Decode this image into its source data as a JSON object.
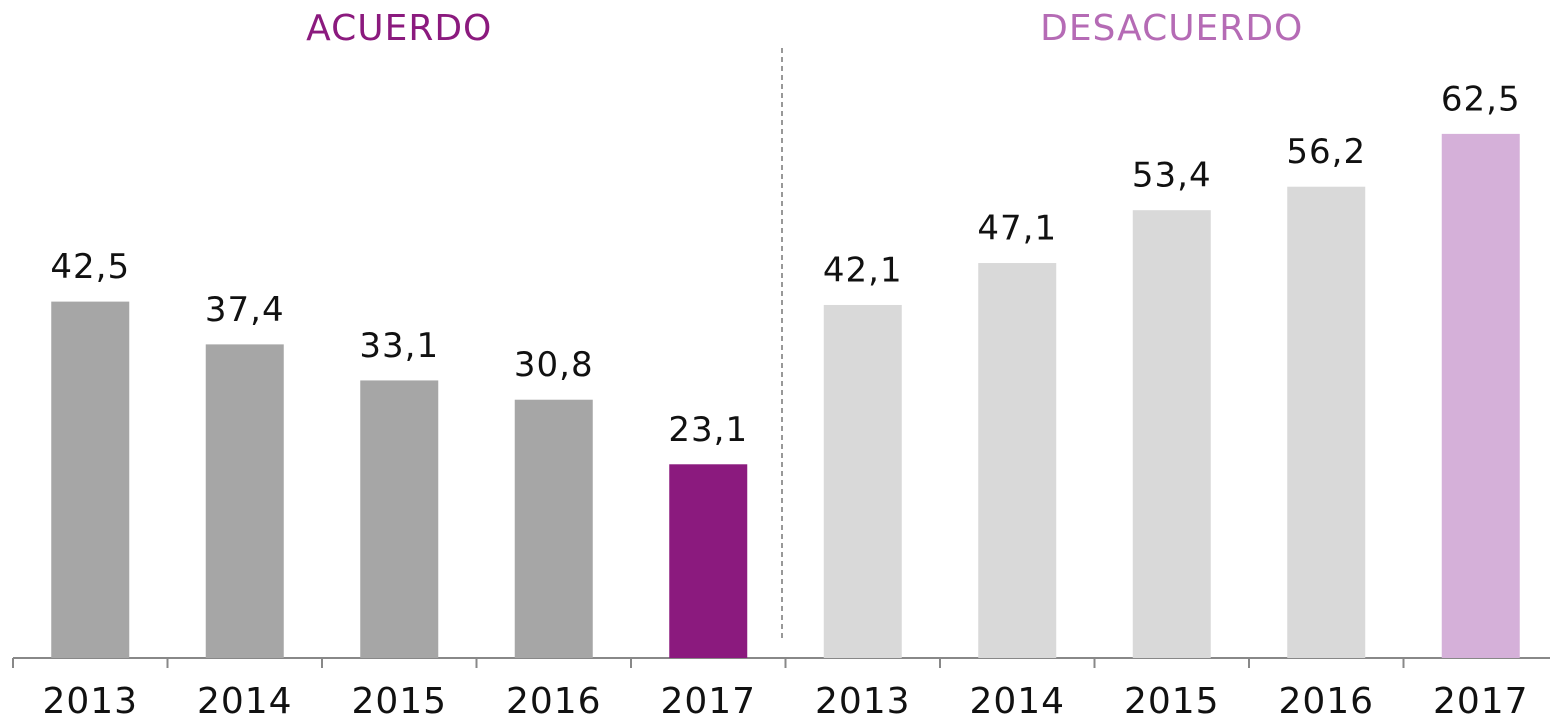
{
  "chart_data": [
    {
      "type": "bar",
      "title": "ACUERDO",
      "title_color": "#8b1a7e",
      "categories": [
        "2013",
        "2014",
        "2015",
        "2016",
        "2017"
      ],
      "values": [
        42.5,
        37.4,
        33.1,
        30.8,
        23.1
      ],
      "value_labels": [
        "42,5",
        "37,4",
        "33,1",
        "30,8",
        "23,1"
      ],
      "colors": [
        "#a6a6a6",
        "#a6a6a6",
        "#a6a6a6",
        "#a6a6a6",
        "#8b1a7e"
      ],
      "ylim": [
        0,
        70
      ]
    },
    {
      "type": "bar",
      "title": "DESACUERDO",
      "title_color": "#b56bb5",
      "categories": [
        "2013",
        "2014",
        "2015",
        "2016",
        "2017"
      ],
      "values": [
        42.1,
        47.1,
        53.4,
        56.2,
        62.5
      ],
      "value_labels": [
        "42,1",
        "47,1",
        "53,4",
        "56,2",
        "62,5"
      ],
      "colors": [
        "#d9d9d9",
        "#d9d9d9",
        "#d9d9d9",
        "#d9d9d9",
        "#d5b0d9"
      ],
      "ylim": [
        0,
        70
      ]
    }
  ]
}
